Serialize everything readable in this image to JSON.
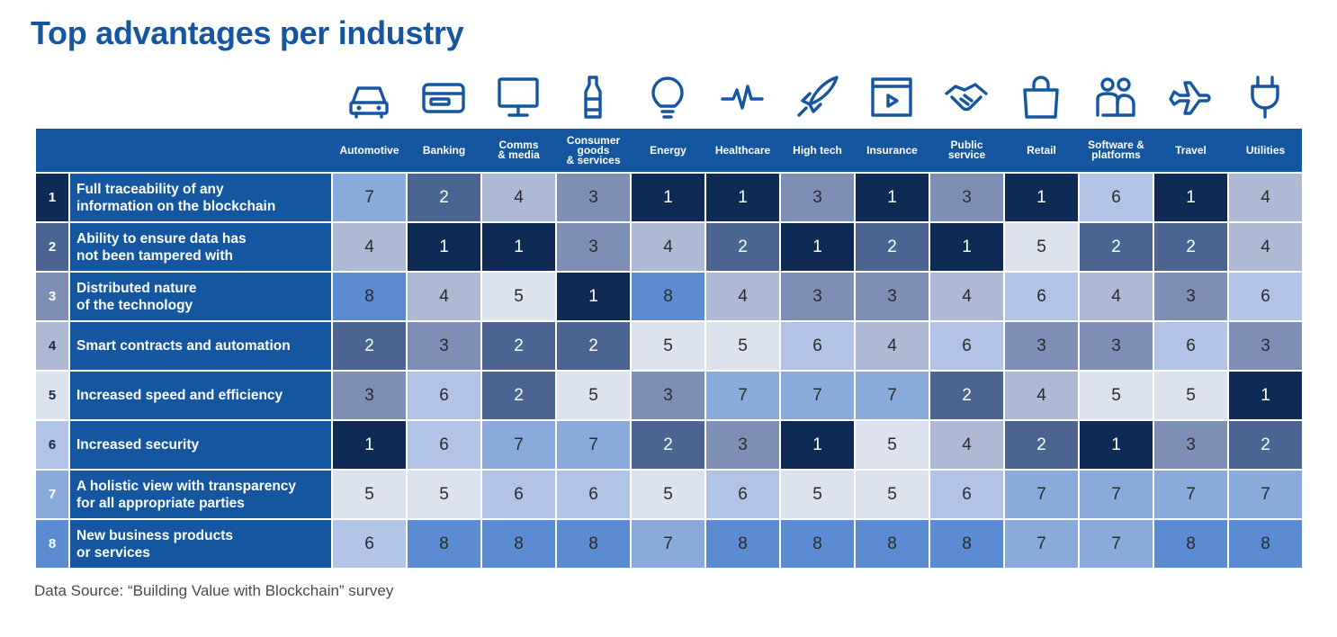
{
  "title": "Top advantages per industry",
  "source": "Data Source: “Building Value with Blockchain” survey",
  "icons": [
    "car-icon",
    "credit-card-icon",
    "monitor-icon",
    "bottle-icon",
    "lightbulb-icon",
    "pulse-icon",
    "rocket-icon",
    "media-play-icon",
    "handshake-icon",
    "shopping-bag-icon",
    "people-icon",
    "airplane-icon",
    "plug-icon"
  ],
  "colors": {
    "header": "#1556a0",
    "rank_1": "#102a56",
    "rank_2": "#4b6491",
    "rank_3": "#7d8fb4",
    "rank_4": "#aeb9d3",
    "rank_5": "#dde2ef",
    "rank_6": "#b2c4e6",
    "rank_7": "#8aaadb",
    "rank_8": "#5b8bd0",
    "row_num_1": "#102a56",
    "row_num_2": "#4b6491",
    "row_num_3": "#7d8fb4",
    "row_num_4": "#aeb9d3",
    "row_num_5": "#dde2ef",
    "row_num_6": "#b2c4e6",
    "row_num_7": "#8aaadb",
    "row_num_8": "#5b8bd0"
  },
  "chart_data": {
    "type": "heatmap",
    "title": "Top advantages per industry",
    "columns": [
      "Automotive",
      "Banking",
      "Comms\n& media",
      "Consumer\ngoods\n& services",
      "Energy",
      "Healthcare",
      "High tech",
      "Insurance",
      "Public\nservice",
      "Retail",
      "Software &\nplatforms",
      "Travel",
      "Utilities"
    ],
    "rows": [
      {
        "rank": "1",
        "label": "Full traceability of any\ninformation on the blockchain",
        "values": [
          7,
          2,
          4,
          3,
          1,
          1,
          3,
          1,
          3,
          1,
          6,
          1,
          4
        ]
      },
      {
        "rank": "2",
        "label": "Ability to ensure data has\nnot been tampered with",
        "values": [
          4,
          1,
          1,
          3,
          4,
          2,
          1,
          2,
          1,
          5,
          2,
          2,
          4
        ]
      },
      {
        "rank": "3",
        "label": "Distributed nature\nof the technology",
        "values": [
          8,
          4,
          5,
          1,
          8,
          4,
          3,
          3,
          4,
          6,
          4,
          3,
          6
        ]
      },
      {
        "rank": "4",
        "label": "Smart contracts and automation",
        "values": [
          2,
          3,
          2,
          2,
          5,
          5,
          6,
          4,
          6,
          3,
          3,
          6,
          3
        ]
      },
      {
        "rank": "5",
        "label": "Increased speed and efficiency",
        "values": [
          3,
          6,
          2,
          5,
          3,
          7,
          7,
          7,
          2,
          4,
          5,
          5,
          1
        ]
      },
      {
        "rank": "6",
        "label": "Increased security",
        "values": [
          1,
          6,
          7,
          7,
          2,
          3,
          1,
          5,
          4,
          2,
          1,
          3,
          2
        ]
      },
      {
        "rank": "7",
        "label": "A holistic view with transparency\nfor all appropriate parties",
        "values": [
          5,
          5,
          6,
          6,
          5,
          6,
          5,
          5,
          6,
          7,
          7,
          7,
          7
        ]
      },
      {
        "rank": "8",
        "label": "New business products\nor services",
        "values": [
          6,
          8,
          8,
          8,
          7,
          8,
          8,
          8,
          8,
          7,
          7,
          8,
          8
        ]
      }
    ],
    "value_range": [
      1,
      8
    ]
  }
}
